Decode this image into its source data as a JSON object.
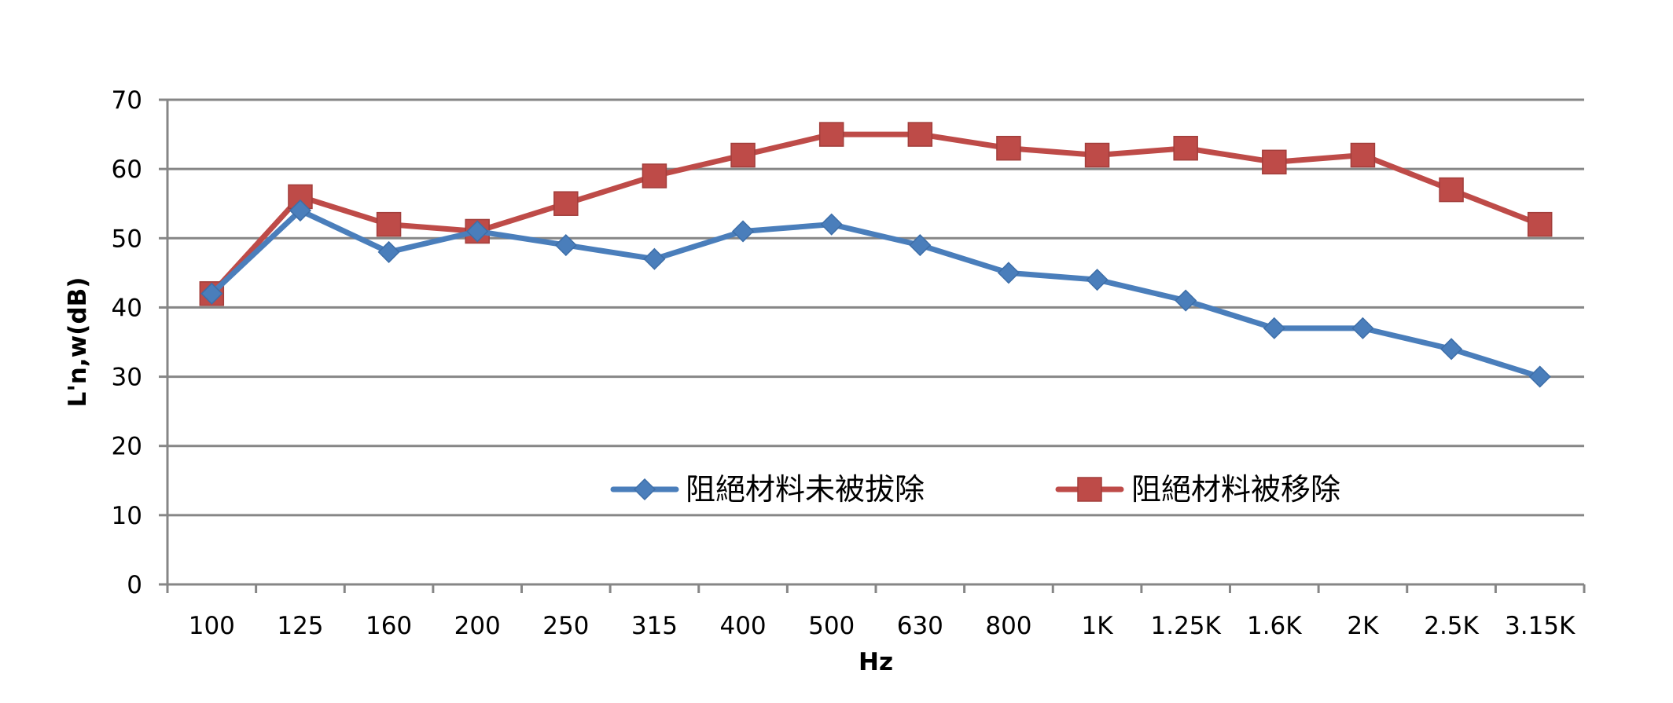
{
  "chart_data": {
    "type": "line",
    "xlabel": "Hz",
    "ylabel": "L'n,w(dB)",
    "categories": [
      "100",
      "125",
      "160",
      "200",
      "250",
      "315",
      "400",
      "500",
      "630",
      "800",
      "1K",
      "1.25K",
      "1.6K",
      "2K",
      "2.5K",
      "3.15K"
    ],
    "ylim": [
      0,
      70
    ],
    "yticks": [
      0,
      10,
      20,
      30,
      40,
      50,
      60,
      70
    ],
    "grid": true,
    "legend_position": "inside-bottom-center",
    "series": [
      {
        "name": "阻絕材料未被拔除",
        "color": "#4a7ebb",
        "marker": "diamond",
        "values": [
          42,
          54,
          48,
          51,
          49,
          47,
          51,
          52,
          49,
          45,
          44,
          41,
          37,
          37,
          34,
          30
        ]
      },
      {
        "name": "阻絕材料被移除",
        "color": "#be4b48",
        "marker": "square",
        "values": [
          42,
          56,
          52,
          51,
          55,
          59,
          62,
          65,
          65,
          63,
          62,
          63,
          61,
          62,
          57,
          52
        ]
      }
    ]
  }
}
